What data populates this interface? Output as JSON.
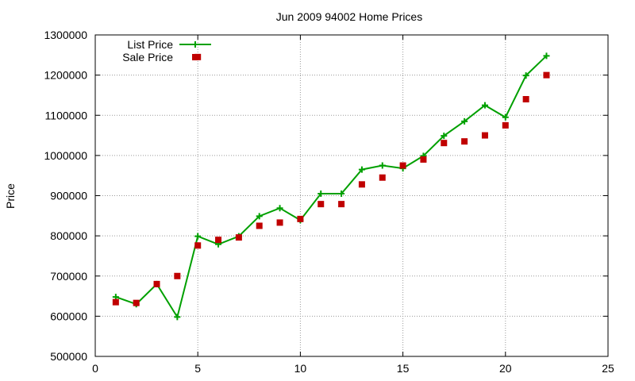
{
  "chart_data": {
    "type": "line",
    "title": "Jun 2009 94002 Home Prices",
    "xlabel": "",
    "ylabel": "Price",
    "xlim": [
      0,
      25
    ],
    "ylim": [
      500000,
      1300000
    ],
    "x_ticks": [
      0,
      5,
      10,
      15,
      20,
      25
    ],
    "y_ticks": [
      500000,
      600000,
      700000,
      800000,
      900000,
      1000000,
      1100000,
      1200000,
      1300000
    ],
    "grid": true,
    "legend_position": "top-left",
    "series": [
      {
        "name": "List Price",
        "kind": "line-with-plus-markers",
        "color": "#00a000",
        "x": [
          1,
          2,
          3,
          4,
          5,
          6,
          7,
          8,
          9,
          10,
          11,
          12,
          13,
          14,
          15,
          16,
          17,
          18,
          19,
          20,
          21,
          22
        ],
        "y": [
          648000,
          630000,
          680000,
          598000,
          799000,
          779000,
          799000,
          849000,
          869000,
          839000,
          905000,
          905000,
          965000,
          975000,
          968000,
          999000,
          1049000,
          1085000,
          1125000,
          1095000,
          1199000,
          1248000
        ]
      },
      {
        "name": "Sale Price",
        "kind": "scatter-square",
        "color": "#c00000",
        "x": [
          1,
          2,
          3,
          4,
          5,
          5,
          6,
          7,
          8,
          9,
          10,
          11,
          12,
          13,
          14,
          15,
          16,
          17,
          18,
          19,
          20,
          21,
          22
        ],
        "y": [
          635000,
          633000,
          680000,
          700000,
          776000,
          1245000,
          790000,
          796000,
          825000,
          833000,
          842000,
          879000,
          879000,
          928000,
          945000,
          975000,
          990000,
          1031000,
          1035000,
          1050000,
          1075000,
          1140000,
          1200000
        ]
      }
    ]
  }
}
